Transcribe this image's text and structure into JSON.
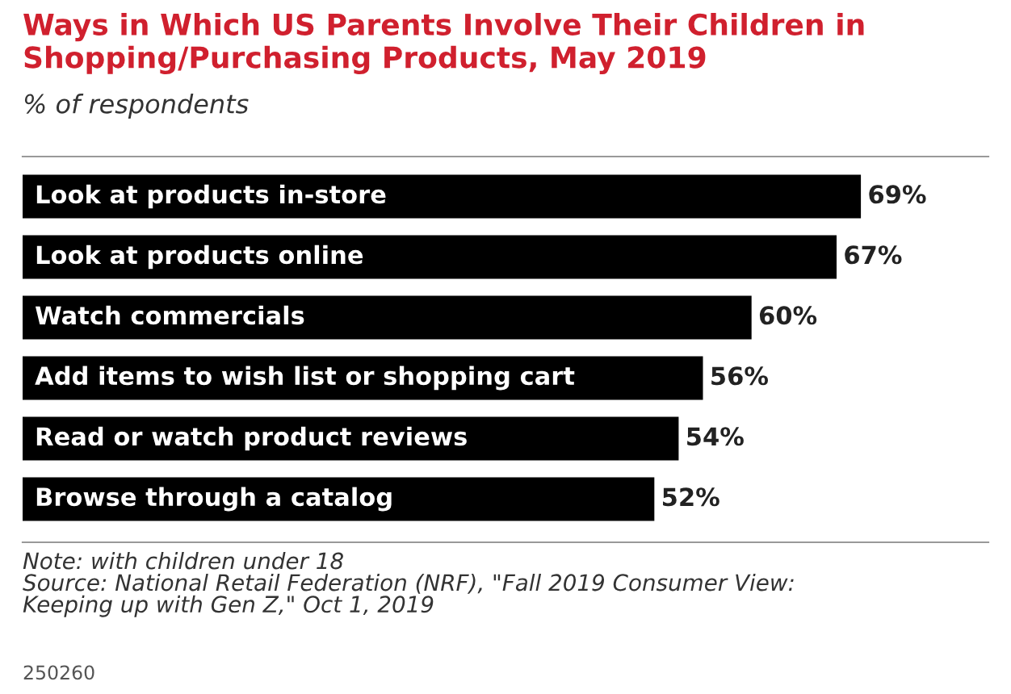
{
  "chart_data": {
    "type": "bar",
    "orientation": "horizontal",
    "title": "Ways in Which US Parents Involve Their Children in\nShopping/Purchasing Products, May 2019",
    "subtitle": "% of respondents",
    "categories": [
      "Look at products in-store",
      "Look at products online",
      "Watch commercials",
      "Add items to wish list or shopping cart",
      "Read or watch product reviews",
      "Browse through a catalog"
    ],
    "values": [
      69,
      67,
      60,
      56,
      54,
      52
    ],
    "value_labels": [
      "69%",
      "67%",
      "60%",
      "56%",
      "54%",
      "52%"
    ],
    "color": "#000000",
    "legend": false,
    "annotations": [
      "Note: with children under 18\nSource: National Retail Federation (NRF), \"Fall 2019 Consumer View:\nKeeping up with Gen Z,\" Oct 1, 2019",
      "250260"
    ]
  }
}
